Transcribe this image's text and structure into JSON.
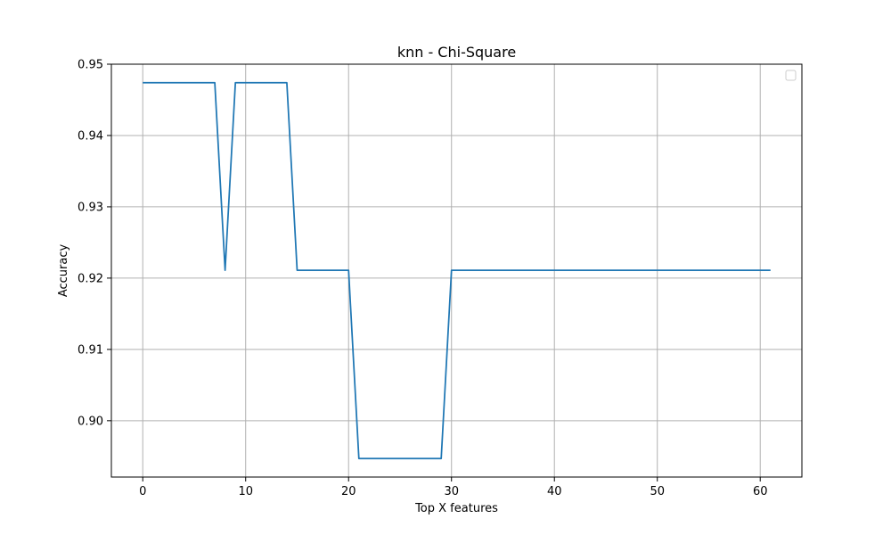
{
  "chart_data": {
    "type": "line",
    "title": "knn - Chi-Square",
    "xlabel": "Top X features",
    "ylabel": "Accuracy",
    "xlim": [
      -3.05,
      64.05
    ],
    "ylim": [
      0.8921,
      0.95
    ],
    "grid": true,
    "legend": {
      "placement": "top-right",
      "entries": []
    },
    "line_color": "#1f77b4",
    "x_ticks": [
      0,
      10,
      20,
      30,
      40,
      50,
      60
    ],
    "x_tick_labels": [
      "0",
      "10",
      "20",
      "30",
      "40",
      "50",
      "60"
    ],
    "y_ticks": [
      0.9,
      0.91,
      0.92,
      0.93,
      0.94,
      0.95
    ],
    "y_tick_labels": [
      "0.90",
      "0.91",
      "0.92",
      "0.93",
      "0.94",
      "0.95"
    ],
    "series": [
      {
        "x": [
          0,
          1,
          2,
          3,
          4,
          5,
          6,
          7,
          8,
          9,
          10,
          11,
          12,
          13,
          14,
          15,
          16,
          17,
          18,
          19,
          20,
          21,
          22,
          23,
          24,
          25,
          26,
          27,
          28,
          29,
          30,
          31,
          32,
          33,
          34,
          35,
          36,
          37,
          38,
          39,
          40,
          41,
          42,
          43,
          44,
          45,
          46,
          47,
          48,
          49,
          50,
          51,
          52,
          53,
          54,
          55,
          56,
          57,
          58,
          59,
          60,
          61
        ],
        "values": [
          0.9474,
          0.9474,
          0.9474,
          0.9474,
          0.9474,
          0.9474,
          0.9474,
          0.9474,
          0.9211,
          0.9474,
          0.9474,
          0.9474,
          0.9474,
          0.9474,
          0.9474,
          0.9211,
          0.9211,
          0.9211,
          0.9211,
          0.9211,
          0.9211,
          0.8947,
          0.8947,
          0.8947,
          0.8947,
          0.8947,
          0.8947,
          0.8947,
          0.8947,
          0.8947,
          0.9211,
          0.9211,
          0.9211,
          0.9211,
          0.9211,
          0.9211,
          0.9211,
          0.9211,
          0.9211,
          0.9211,
          0.9211,
          0.9211,
          0.9211,
          0.9211,
          0.9211,
          0.9211,
          0.9211,
          0.9211,
          0.9211,
          0.9211,
          0.9211,
          0.9211,
          0.9211,
          0.9211,
          0.9211,
          0.9211,
          0.9211,
          0.9211,
          0.9211,
          0.9211,
          0.9211,
          0.9211
        ]
      }
    ]
  }
}
